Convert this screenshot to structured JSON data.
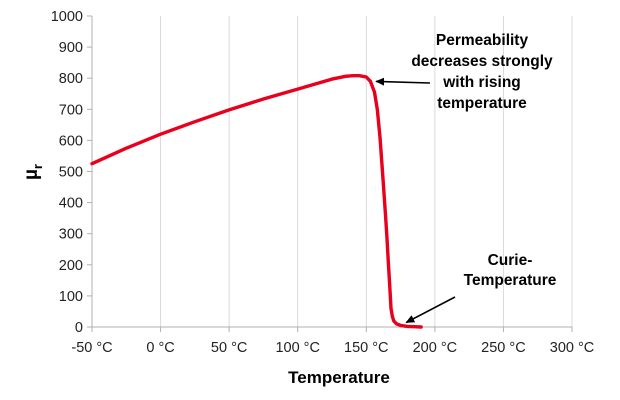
{
  "chart_data": {
    "type": "line",
    "title": "",
    "xlabel": "Temperature",
    "ylabel_main": "µ",
    "ylabel_sub": "r",
    "xlim": [
      -50,
      300
    ],
    "ylim": [
      0,
      1000
    ],
    "x_ticks": [
      -50,
      0,
      50,
      100,
      150,
      200,
      250,
      300
    ],
    "x_tick_labels": [
      "-50 °C",
      "0 °C",
      "50 °C",
      "100 °C",
      "150 °C",
      "200 °C",
      "250 °C",
      "300 °C"
    ],
    "y_ticks": [
      0,
      100,
      200,
      300,
      400,
      500,
      600,
      700,
      800,
      900,
      1000
    ],
    "y_tick_labels": [
      "0",
      "100",
      "200",
      "300",
      "400",
      "500",
      "600",
      "700",
      "800",
      "900",
      "1000"
    ],
    "grid": "vertical",
    "series": [
      {
        "name": "Permeability",
        "color": "#e8001c",
        "x": [
          -50,
          -25,
          0,
          25,
          50,
          75,
          100,
          125,
          135,
          140,
          145,
          150,
          153,
          156,
          158,
          160,
          162,
          164,
          165,
          166,
          167,
          168,
          169,
          170,
          172,
          175,
          180,
          185,
          190
        ],
        "y": [
          525,
          575,
          620,
          660,
          698,
          733,
          765,
          797,
          806,
          808,
          808,
          804,
          790,
          755,
          700,
          610,
          490,
          360,
          290,
          215,
          140,
          60,
          35,
          20,
          10,
          5,
          2,
          1,
          0
        ]
      }
    ],
    "annotations": [
      {
        "lines": [
          "Permeability",
          "decreases strongly",
          "with rising",
          "temperature"
        ],
        "arrow_to": [
          155,
          780
        ]
      },
      {
        "lines": [
          "Curie-",
          "Temperature"
        ],
        "arrow_to": [
          177,
          5
        ]
      }
    ]
  }
}
